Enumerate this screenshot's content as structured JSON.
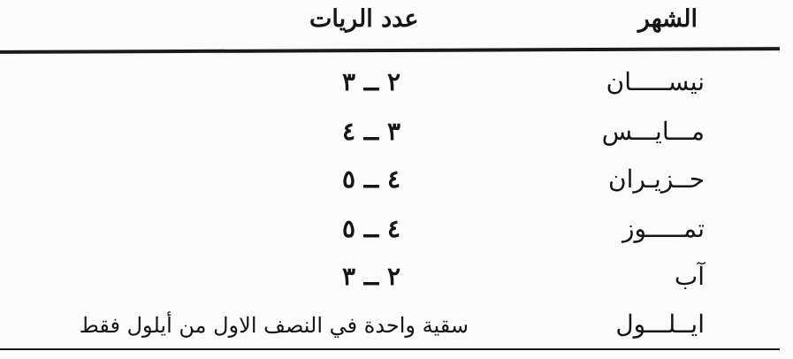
{
  "table": {
    "headers": {
      "month": "الشهر",
      "count": "عدد الريات"
    },
    "rows": [
      {
        "month": "نيســـــان",
        "count": "٢ ــ ٣"
      },
      {
        "month": "مـــايـــس",
        "count": "٣ ــ ٤"
      },
      {
        "month": "حــزيـران",
        "count": "٤ ــ ٥"
      },
      {
        "month": "تمـــــوز",
        "count": "٤ ــ ٥"
      },
      {
        "month": "آب",
        "count": "٢ ــ ٣"
      },
      {
        "month": "ايــلـــول",
        "count": "سقية واحدة في النصف الاول من أيلول فقط"
      }
    ]
  }
}
